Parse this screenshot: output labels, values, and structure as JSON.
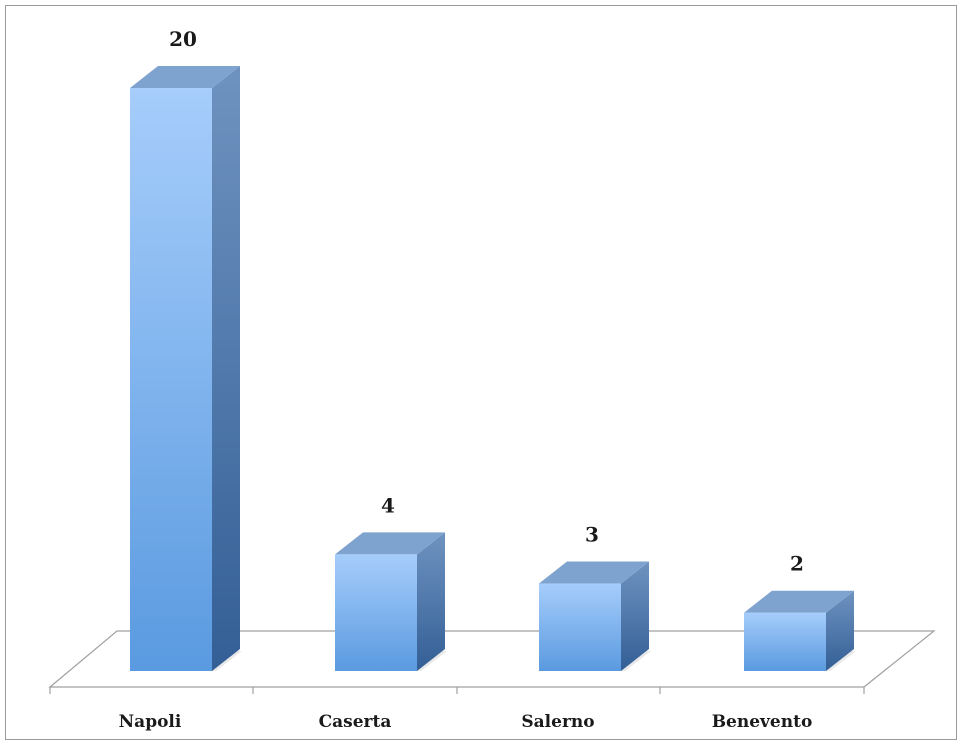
{
  "chart_data": {
    "type": "bar",
    "categories": [
      "Napoli",
      "Caserta",
      "Salerno",
      "Benevento"
    ],
    "values": [
      20,
      4,
      3,
      2
    ],
    "title": "",
    "xlabel": "",
    "ylabel": "",
    "ylim": [
      0,
      20
    ],
    "grid": false,
    "legend": "none",
    "style": "3d-column",
    "colors": {
      "front_top": "#a6cdfb",
      "front_bottom": "#5a9ae0",
      "side_top": "#6f93c0",
      "side_bottom": "#335f96",
      "top_face": "#7fa3cf",
      "floor_stroke": "#a0a0a0",
      "text": "#1a1a1a"
    }
  }
}
